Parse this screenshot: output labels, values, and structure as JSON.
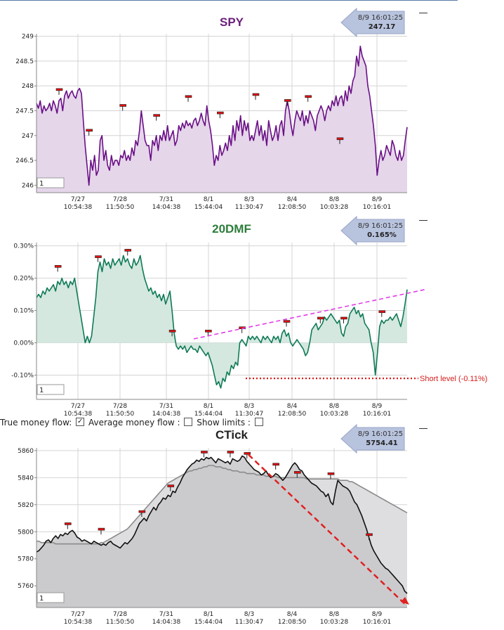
{
  "options_bar": {
    "true_flow_label": "True money flow:",
    "true_flow_checked": true,
    "avg_flow_label": "Average money flow :",
    "avg_flow_checked": false,
    "limits_label": "Show limits :",
    "limits_checked": false
  },
  "chart_data": [
    {
      "type": "area",
      "title": "SPY",
      "title_color": "#6a1f7a",
      "line_color": "#6a0f86",
      "fill_color": "#e5d6ea",
      "callout": {
        "time": "8/9 16:01:25",
        "value": "247.17"
      },
      "period_input": "1",
      "ylim": [
        245.85,
        249.05
      ],
      "yticks": [
        249,
        248.5,
        248,
        247.5,
        247,
        246.5,
        246
      ],
      "ytick_labels": [
        "249",
        "248.5",
        "248",
        "247.5",
        "247",
        "246.5",
        "246"
      ],
      "xticks": [
        {
          "date": "7/27",
          "time": "10:54:38"
        },
        {
          "date": "7/28",
          "time": "11:50:50"
        },
        {
          "date": "7/31",
          "time": "14:04:38"
        },
        {
          "date": "8/1",
          "time": "15:44:04"
        },
        {
          "date": "8/3",
          "time": "11:30:47"
        },
        {
          "date": "8/4",
          "time": "12:08:50"
        },
        {
          "date": "8/8",
          "time": "10:03:28"
        },
        {
          "date": "8/9",
          "time": "10:16:01"
        }
      ],
      "series": [
        {
          "values": [
            247.65,
            247.55,
            247.7,
            247.45,
            247.6,
            247.5,
            247.55,
            247.65,
            247.5,
            247.7,
            247.6,
            247.45,
            247.7,
            247.75,
            247.5,
            247.8,
            247.9,
            247.75,
            247.85,
            247.9,
            247.8,
            247.75,
            247.9,
            247.95,
            247.85,
            247.3,
            246.8,
            246.4,
            246.0,
            246.5,
            246.3,
            246.6,
            246.2,
            246.3,
            246.9,
            247.0,
            246.5,
            246.7,
            246.4,
            246.3,
            246.6,
            246.4,
            246.5,
            246.5,
            246.4,
            246.6,
            246.55,
            246.7,
            246.5,
            246.6,
            246.5,
            246.75,
            246.6,
            246.9,
            246.8,
            247.1,
            247.5,
            247.2,
            246.9,
            246.8,
            246.8,
            246.5,
            246.9,
            246.8,
            247.0,
            246.7,
            247.0,
            246.9,
            247.1,
            246.9,
            247.2,
            246.9,
            247.0,
            247.1,
            246.8,
            246.9,
            247.2,
            247.1,
            247.25,
            247.15,
            247.3,
            247.2,
            247.25,
            247.15,
            247.3,
            247.35,
            247.2,
            247.3,
            247.45,
            247.3,
            247.2,
            247.6,
            247.3,
            247.1,
            246.8,
            246.4,
            246.6,
            246.5,
            246.8,
            246.6,
            246.7,
            246.85,
            246.7,
            247.0,
            246.8,
            247.2,
            246.9,
            247.3,
            247.1,
            247.4,
            247.0,
            247.3,
            247.1,
            247.25,
            246.9,
            247.0,
            246.9,
            247.1,
            247.3,
            247.0,
            247.2,
            246.9,
            247.1,
            246.8,
            247.3,
            247.1,
            246.9,
            247.0,
            247.2,
            246.9,
            247.2,
            247.3,
            247.0,
            247.5,
            247.7,
            247.5,
            247.2,
            247.0,
            247.3,
            247.5,
            247.4,
            247.3,
            247.5,
            247.2,
            247.4,
            247.25,
            247.5,
            247.4,
            247.3,
            247.1,
            247.4,
            247.5,
            247.6,
            247.5,
            247.3,
            247.5,
            247.6,
            247.5,
            247.7,
            247.6,
            247.8,
            247.6,
            247.75,
            247.8,
            247.6,
            247.9,
            247.7,
            248.0,
            247.85,
            248.1,
            248.2,
            248.6,
            248.4,
            248.8,
            248.6,
            248.5,
            248.4,
            248.0,
            247.8,
            247.5,
            247.2,
            246.8,
            246.2,
            246.5,
            246.7,
            246.5,
            246.6,
            246.8,
            246.7,
            246.6,
            246.9,
            246.8,
            246.6,
            246.5,
            246.7,
            246.5,
            246.6,
            246.9,
            247.17
          ]
        }
      ],
      "markers": [
        {
          "index": 12,
          "value": 247.82
        },
        {
          "index": 28,
          "value": 247.0
        },
        {
          "index": 46,
          "value": 247.5
        },
        {
          "index": 64,
          "value": 247.3
        },
        {
          "index": 81,
          "value": 247.68
        },
        {
          "index": 98,
          "value": 247.35
        },
        {
          "index": 117,
          "value": 247.72
        },
        {
          "index": 134,
          "value": 247.6
        },
        {
          "index": 145,
          "value": 247.68
        },
        {
          "index": 162,
          "value": 246.83
        }
      ]
    },
    {
      "type": "area",
      "title": "20DMF",
      "title_color": "#2e7d3c",
      "line_color": "#0f7a55",
      "fill_color": "#d4e8e0",
      "callout": {
        "time": "8/9 16:01:25",
        "value": "0.165%"
      },
      "period_input": "1",
      "ylim": [
        -0.175,
        0.31
      ],
      "yticks": [
        0.3,
        0.2,
        0.1,
        0.0,
        -0.1
      ],
      "ytick_labels": [
        "0.30%",
        "0.20%",
        "0.10%",
        "0.00%",
        "-0.10%"
      ],
      "xticks": [
        {
          "date": "7/27",
          "time": "10:54:38"
        },
        {
          "date": "7/28",
          "time": "11:50:50"
        },
        {
          "date": "7/31",
          "time": "14:04:38"
        },
        {
          "date": "8/1",
          "time": "15:44:04"
        },
        {
          "date": "8/3",
          "time": "11:30:47"
        },
        {
          "date": "8/4",
          "time": "12:08:50"
        },
        {
          "date": "8/8",
          "time": "10:03:28"
        },
        {
          "date": "8/9",
          "time": "10:16:01"
        }
      ],
      "series": [
        {
          "values": [
            0.14,
            0.15,
            0.14,
            0.16,
            0.15,
            0.17,
            0.16,
            0.17,
            0.18,
            0.16,
            0.19,
            0.18,
            0.2,
            0.18,
            0.19,
            0.17,
            0.19,
            0.18,
            0.2,
            0.16,
            0.12,
            0.08,
            0.04,
            0.0,
            0.02,
            0.0,
            0.02,
            0.08,
            0.14,
            0.22,
            0.25,
            0.22,
            0.26,
            0.24,
            0.25,
            0.23,
            0.26,
            0.24,
            0.25,
            0.26,
            0.24,
            0.27,
            0.25,
            0.26,
            0.24,
            0.23,
            0.26,
            0.24,
            0.25,
            0.27,
            0.23,
            0.2,
            0.18,
            0.16,
            0.17,
            0.15,
            0.16,
            0.14,
            0.15,
            0.13,
            0.15,
            0.12,
            0.14,
            0.16,
            0.1,
            0.03,
            -0.01,
            -0.02,
            -0.01,
            -0.02,
            -0.01,
            -0.03,
            -0.02,
            -0.01,
            -0.02,
            -0.02,
            -0.03,
            -0.01,
            -0.02,
            -0.03,
            -0.04,
            -0.03,
            -0.05,
            -0.07,
            -0.1,
            -0.13,
            -0.12,
            -0.14,
            -0.11,
            -0.12,
            -0.09,
            -0.1,
            -0.07,
            -0.08,
            -0.06,
            -0.07,
            0.0,
            0.01,
            0.0,
            -0.01,
            0.02,
            0.01,
            0.02,
            0.01,
            0.02,
            0.01,
            0.0,
            0.02,
            0.01,
            0.02,
            0.01,
            0.0,
            0.02,
            0.01,
            0.02,
            0.0,
            0.03,
            0.04,
            0.02,
            0.03,
            0.0,
            -0.01,
            0.0,
            0.01,
            0.0,
            -0.01,
            -0.02,
            -0.04,
            -0.03,
            0.0,
            0.04,
            0.05,
            0.06,
            0.04,
            0.05,
            0.06,
            0.08,
            0.07,
            0.08,
            0.09,
            0.08,
            0.07,
            0.06,
            0.07,
            0.03,
            0.02,
            0.05,
            0.06,
            0.09,
            0.1,
            0.11,
            0.09,
            0.1,
            0.08,
            0.09,
            0.06,
            0.05,
            0.04,
            0.0,
            -0.03,
            -0.1,
            -0.03,
            0.05,
            0.07,
            0.06,
            0.07,
            0.07,
            0.08,
            0.07,
            0.08,
            0.09,
            0.07,
            0.05,
            0.08,
            0.12,
            0.165
          ]
        }
      ],
      "markers": [
        {
          "index": 10,
          "value": 0.22
        },
        {
          "index": 29,
          "value": 0.25
        },
        {
          "index": 43,
          "value": 0.27
        },
        {
          "index": 64,
          "value": 0.02
        },
        {
          "index": 81,
          "value": 0.02
        },
        {
          "index": 97,
          "value": 0.03
        },
        {
          "index": 118,
          "value": 0.05
        },
        {
          "index": 134,
          "value": 0.06
        },
        {
          "index": 145,
          "value": 0.06
        },
        {
          "index": 163,
          "value": 0.08
        }
      ],
      "trendline_color": "#e23ce8",
      "short_level": {
        "value": -0.11,
        "label": "Short level (-0.11%)",
        "color": "#d61b1b"
      }
    },
    {
      "type": "area",
      "title": "CTick",
      "title_color": "#222222",
      "line_color": "#111111",
      "fill_color": "#c8c8ca",
      "avg_color": "#8a8a8a",
      "avg_fill_color": "#dedee0",
      "callout": {
        "time": "8/9 16:01:25",
        "value": "5754.41"
      },
      "period_input": "1",
      "ylim": [
        5744,
        5862
      ],
      "yticks": [
        5860,
        5840,
        5820,
        5800,
        5780,
        5760
      ],
      "ytick_labels": [
        "5860",
        "5840",
        "5820",
        "5800",
        "5780",
        "5760"
      ],
      "xticks": [
        {
          "date": "7/27",
          "time": "10:54:38"
        },
        {
          "date": "7/28",
          "time": "11:50:50"
        },
        {
          "date": "7/31",
          "time": "14:04:38"
        },
        {
          "date": "8/1",
          "time": "15:44:04"
        },
        {
          "date": "8/3",
          "time": "11:30:47"
        },
        {
          "date": "8/4",
          "time": "12:08:50"
        },
        {
          "date": "8/8",
          "time": "10:03:28"
        },
        {
          "date": "8/9",
          "time": "10:16:01"
        }
      ],
      "series": [
        {
          "name": "true",
          "values": [
            5785,
            5786,
            5788,
            5790,
            5793,
            5794,
            5792,
            5795,
            5797,
            5795,
            5798,
            5797,
            5799,
            5798,
            5800,
            5801,
            5799,
            5796,
            5795,
            5793,
            5794,
            5793,
            5792,
            5791,
            5793,
            5792,
            5791,
            5790,
            5791,
            5790,
            5792,
            5793,
            5791,
            5790,
            5789,
            5788,
            5790,
            5792,
            5791,
            5793,
            5795,
            5798,
            5802,
            5806,
            5808,
            5810,
            5808,
            5812,
            5815,
            5818,
            5816,
            5820,
            5822,
            5825,
            5824,
            5827,
            5826,
            5830,
            5829,
            5833,
            5836,
            5840,
            5843,
            5846,
            5848,
            5850,
            5851,
            5853,
            5852,
            5854,
            5853,
            5855,
            5854,
            5855,
            5853,
            5851,
            5854,
            5853,
            5852,
            5851,
            5852,
            5850,
            5854,
            5853,
            5852,
            5853,
            5856,
            5855,
            5852,
            5850,
            5848,
            5846,
            5845,
            5844,
            5842,
            5843,
            5845,
            5842,
            5840,
            5841,
            5843,
            5842,
            5840,
            5838,
            5840,
            5843,
            5846,
            5849,
            5851,
            5849,
            5846,
            5845,
            5842,
            5840,
            5838,
            5836,
            5835,
            5834,
            5832,
            5830,
            5829,
            5826,
            5828,
            5822,
            5820,
            5830,
            5838,
            5836,
            5834,
            5833,
            5832,
            5830,
            5826,
            5822,
            5820,
            5816,
            5812,
            5807,
            5802,
            5796,
            5790,
            5786,
            5783,
            5780,
            5777,
            5775,
            5773,
            5772,
            5770,
            5768,
            5766,
            5764,
            5762,
            5760,
            5756,
            5754.41
          ]
        },
        {
          "name": "average",
          "values": [
            5793,
            5793,
            5792,
            5792,
            5792,
            5792,
            5792,
            5792,
            5791,
            5791,
            5791,
            5791,
            5791,
            5791,
            5791,
            5791,
            5791,
            5791,
            5791,
            5791,
            5791,
            5791,
            5791,
            5791,
            5791,
            5791,
            5791,
            5792,
            5792,
            5793,
            5794,
            5795,
            5796,
            5797,
            5798,
            5799,
            5800,
            5801,
            5802,
            5804,
            5806,
            5808,
            5810,
            5812,
            5814,
            5816,
            5818,
            5820,
            5822,
            5824,
            5826,
            5828,
            5830,
            5832,
            5834,
            5836,
            5837,
            5838,
            5839,
            5840,
            5841,
            5842,
            5843,
            5844,
            5845,
            5845,
            5846,
            5846,
            5847,
            5847,
            5848,
            5848,
            5849,
            5849,
            5849,
            5848,
            5848,
            5848,
            5847,
            5847,
            5846,
            5846,
            5845,
            5845,
            5845,
            5844,
            5844,
            5844,
            5843,
            5843,
            5843,
            5843,
            5842,
            5842,
            5842,
            5842,
            5841,
            5841,
            5841,
            5841,
            5841,
            5840,
            5840,
            5840,
            5840,
            5840,
            5840,
            5840,
            5840,
            5840,
            5840,
            5840,
            5840,
            5839,
            5839,
            5839,
            5839,
            5839,
            5839,
            5839,
            5839,
            5839,
            5839,
            5839,
            5839,
            5839,
            5839,
            5838,
            5838,
            5838,
            5838,
            5837,
            5837,
            5836,
            5835,
            5834,
            5833,
            5832,
            5831,
            5830,
            5829,
            5828,
            5827,
            5826,
            5825,
            5824,
            5823,
            5822,
            5821,
            5820,
            5819,
            5818,
            5817,
            5816,
            5815,
            5814
          ]
        }
      ],
      "markers": [
        {
          "index": 13,
          "value": 5802
        },
        {
          "index": 27,
          "value": 5798
        },
        {
          "index": 44,
          "value": 5811
        },
        {
          "index": 56,
          "value": 5830
        },
        {
          "index": 70,
          "value": 5855
        },
        {
          "index": 81,
          "value": 5855
        },
        {
          "index": 88,
          "value": 5854
        },
        {
          "index": 100,
          "value": 5846
        },
        {
          "index": 109,
          "value": 5840
        },
        {
          "index": 123,
          "value": 5839
        },
        {
          "index": 139,
          "value": 5794
        }
      ],
      "trendline_color": "#e02020"
    }
  ]
}
